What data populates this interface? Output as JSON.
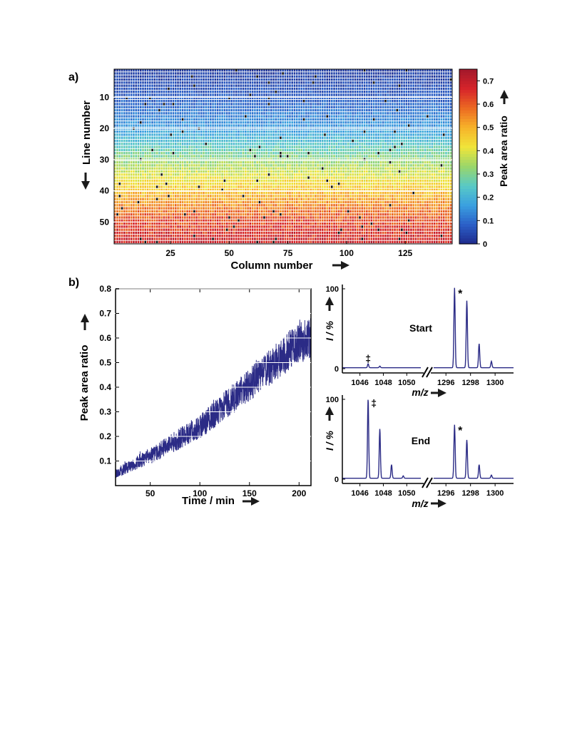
{
  "panels": {
    "a_label": "a)",
    "b_label": "b)"
  },
  "colors": {
    "line": "#2b2b86",
    "grid_line": "#ffffff",
    "axis": "#000000",
    "arrow": "#1a1a1a",
    "colormap": [
      "#1e2a8c",
      "#2b5fc7",
      "#3aa0e0",
      "#58c9c6",
      "#9ad66a",
      "#f0e53a",
      "#f7b32a",
      "#ec6a22",
      "#d6242a",
      "#a3182b"
    ]
  },
  "chart_data": [
    {
      "id": "heatmap",
      "type": "heatmap",
      "xlabel": "Column number",
      "ylabel": "Line number",
      "xticks": [
        25,
        50,
        75,
        100,
        125
      ],
      "yticks": [
        10,
        20,
        30,
        40,
        50
      ],
      "xlim": [
        1,
        145
      ],
      "ylim": [
        1,
        57
      ],
      "n_columns": 145,
      "n_lines": 57,
      "value_trend_by_line": [
        {
          "line": 1,
          "value": 0.03
        },
        {
          "line": 10,
          "value": 0.08
        },
        {
          "line": 20,
          "value": 0.16
        },
        {
          "line": 30,
          "value": 0.32
        },
        {
          "line": 40,
          "value": 0.47
        },
        {
          "line": 50,
          "value": 0.62
        },
        {
          "line": 57,
          "value": 0.68
        }
      ],
      "colorbar": {
        "label": "Peak area ratio",
        "ticks": [
          "0",
          "0.1",
          "0.2",
          "0.3",
          "0.4",
          "0.5",
          "0.6",
          "0.7"
        ],
        "range": [
          0,
          0.75
        ]
      }
    },
    {
      "id": "timeseries",
      "type": "line",
      "xlabel": "Time / min",
      "ylabel": "Peak area ratio",
      "xlim": [
        15,
        212
      ],
      "ylim": [
        0,
        0.8
      ],
      "xticks": [
        50,
        100,
        150,
        200
      ],
      "yticks": [
        0.1,
        0.2,
        0.3,
        0.4,
        0.5,
        0.6,
        0.7,
        0.8
      ],
      "ytick_labels": [
        "0.1",
        "0.2",
        "0.3",
        "0.4",
        "0.5",
        "0.6",
        "0.7",
        "0.8"
      ],
      "trend": [
        {
          "x": 15,
          "y": 0.05
        },
        {
          "x": 50,
          "y": 0.12
        },
        {
          "x": 100,
          "y": 0.24
        },
        {
          "x": 150,
          "y": 0.41
        },
        {
          "x": 200,
          "y": 0.58
        },
        {
          "x": 212,
          "y": 0.6
        }
      ],
      "noise_band": [
        {
          "x": 15,
          "half_width": 0.02
        },
        {
          "x": 100,
          "half_width": 0.05
        },
        {
          "x": 212,
          "half_width": 0.09
        }
      ]
    },
    {
      "id": "spectrum_start",
      "type": "line",
      "title": "Start",
      "xlabel": "m/z",
      "ylabel": "I / %",
      "ylim": [
        0,
        100
      ],
      "yticks": [
        0,
        100
      ],
      "xticks_left": [
        1046,
        1048,
        1050
      ],
      "xticks_right": [
        1296,
        1298,
        1300
      ],
      "xrange_left": [
        1044.5,
        1051.2
      ],
      "xrange_right": [
        1295.0,
        1301.5
      ],
      "peaks": [
        {
          "mz": 1046.7,
          "intensity": 5
        },
        {
          "mz": 1047.7,
          "intensity": 2
        },
        {
          "mz": 1296.7,
          "intensity": 100
        },
        {
          "mz": 1297.7,
          "intensity": 84
        },
        {
          "mz": 1298.7,
          "intensity": 30
        },
        {
          "mz": 1299.7,
          "intensity": 8
        }
      ],
      "annotations": [
        {
          "text": "‡",
          "mz": 1046.7
        },
        {
          "text": "*",
          "mz": 1296.7
        }
      ]
    },
    {
      "id": "spectrum_end",
      "type": "line",
      "title": "End",
      "xlabel": "m/z",
      "ylabel": "I / %",
      "ylim": [
        0,
        100
      ],
      "yticks": [
        0,
        100
      ],
      "xticks_left": [
        1046,
        1048,
        1050
      ],
      "xticks_right": [
        1296,
        1298,
        1300
      ],
      "xrange_left": [
        1044.5,
        1051.2
      ],
      "xrange_right": [
        1295.0,
        1301.5
      ],
      "peaks": [
        {
          "mz": 1046.7,
          "intensity": 100
        },
        {
          "mz": 1047.7,
          "intensity": 62
        },
        {
          "mz": 1048.7,
          "intensity": 17
        },
        {
          "mz": 1049.7,
          "intensity": 3
        },
        {
          "mz": 1296.7,
          "intensity": 67
        },
        {
          "mz": 1297.7,
          "intensity": 48
        },
        {
          "mz": 1298.7,
          "intensity": 17
        },
        {
          "mz": 1299.7,
          "intensity": 4
        }
      ],
      "annotations": [
        {
          "text": "‡",
          "mz": 1046.7
        },
        {
          "text": "*",
          "mz": 1296.7
        }
      ]
    }
  ]
}
